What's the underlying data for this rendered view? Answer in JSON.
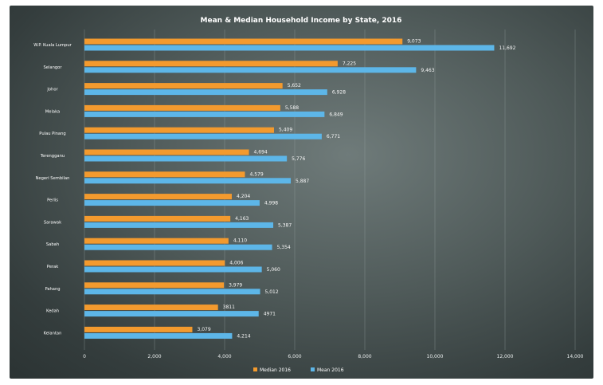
{
  "chart_data": {
    "type": "bar",
    "orientation": "horizontal",
    "title": "Mean & Median Household Income by State, 2016",
    "categories": [
      "W.P. Kuala Lumpur",
      "Selangor",
      "Johor",
      "Melaka",
      "Pulau Pinang",
      "Terengganu",
      "Negeri Sembilan",
      "Perlis",
      "Sarawak",
      "Sabah",
      "Perak",
      "Pahang",
      "Kedah",
      "Kelantan"
    ],
    "series": [
      {
        "name": "Median 2016",
        "color": "#f39a2e",
        "values": [
          9073,
          7225,
          5652,
          5588,
          5409,
          4694,
          4579,
          4204,
          4163,
          4110,
          4006,
          3979,
          3811,
          3079
        ],
        "labels": [
          "9,073",
          "7,225",
          "5,652",
          "5,588",
          "5,409",
          "4,694",
          "4,579",
          "4,204",
          "4,163",
          "4,110",
          "4,006",
          "3,979",
          "3811",
          "3,079"
        ]
      },
      {
        "name": "Mean 2016",
        "color": "#5db6e8",
        "values": [
          11692,
          9463,
          6928,
          6849,
          6771,
          5776,
          5887,
          4998,
          5387,
          5354,
          5060,
          5012,
          4971,
          4214
        ],
        "labels": [
          "11,692",
          "9,463",
          "6,928",
          "6,849",
          "6,771",
          "5,776",
          "5,887",
          "4,998",
          "5,387",
          "5,354",
          "5,060",
          "5,012",
          "4971",
          "4,214"
        ]
      }
    ],
    "x_ticks": [
      "0",
      "2,000",
      "4,000",
      "6,000",
      "8,000",
      "10,000",
      "12,000",
      "14,000"
    ],
    "xlim": [
      0,
      14000
    ],
    "grid": true,
    "legend_position": "bottom"
  }
}
